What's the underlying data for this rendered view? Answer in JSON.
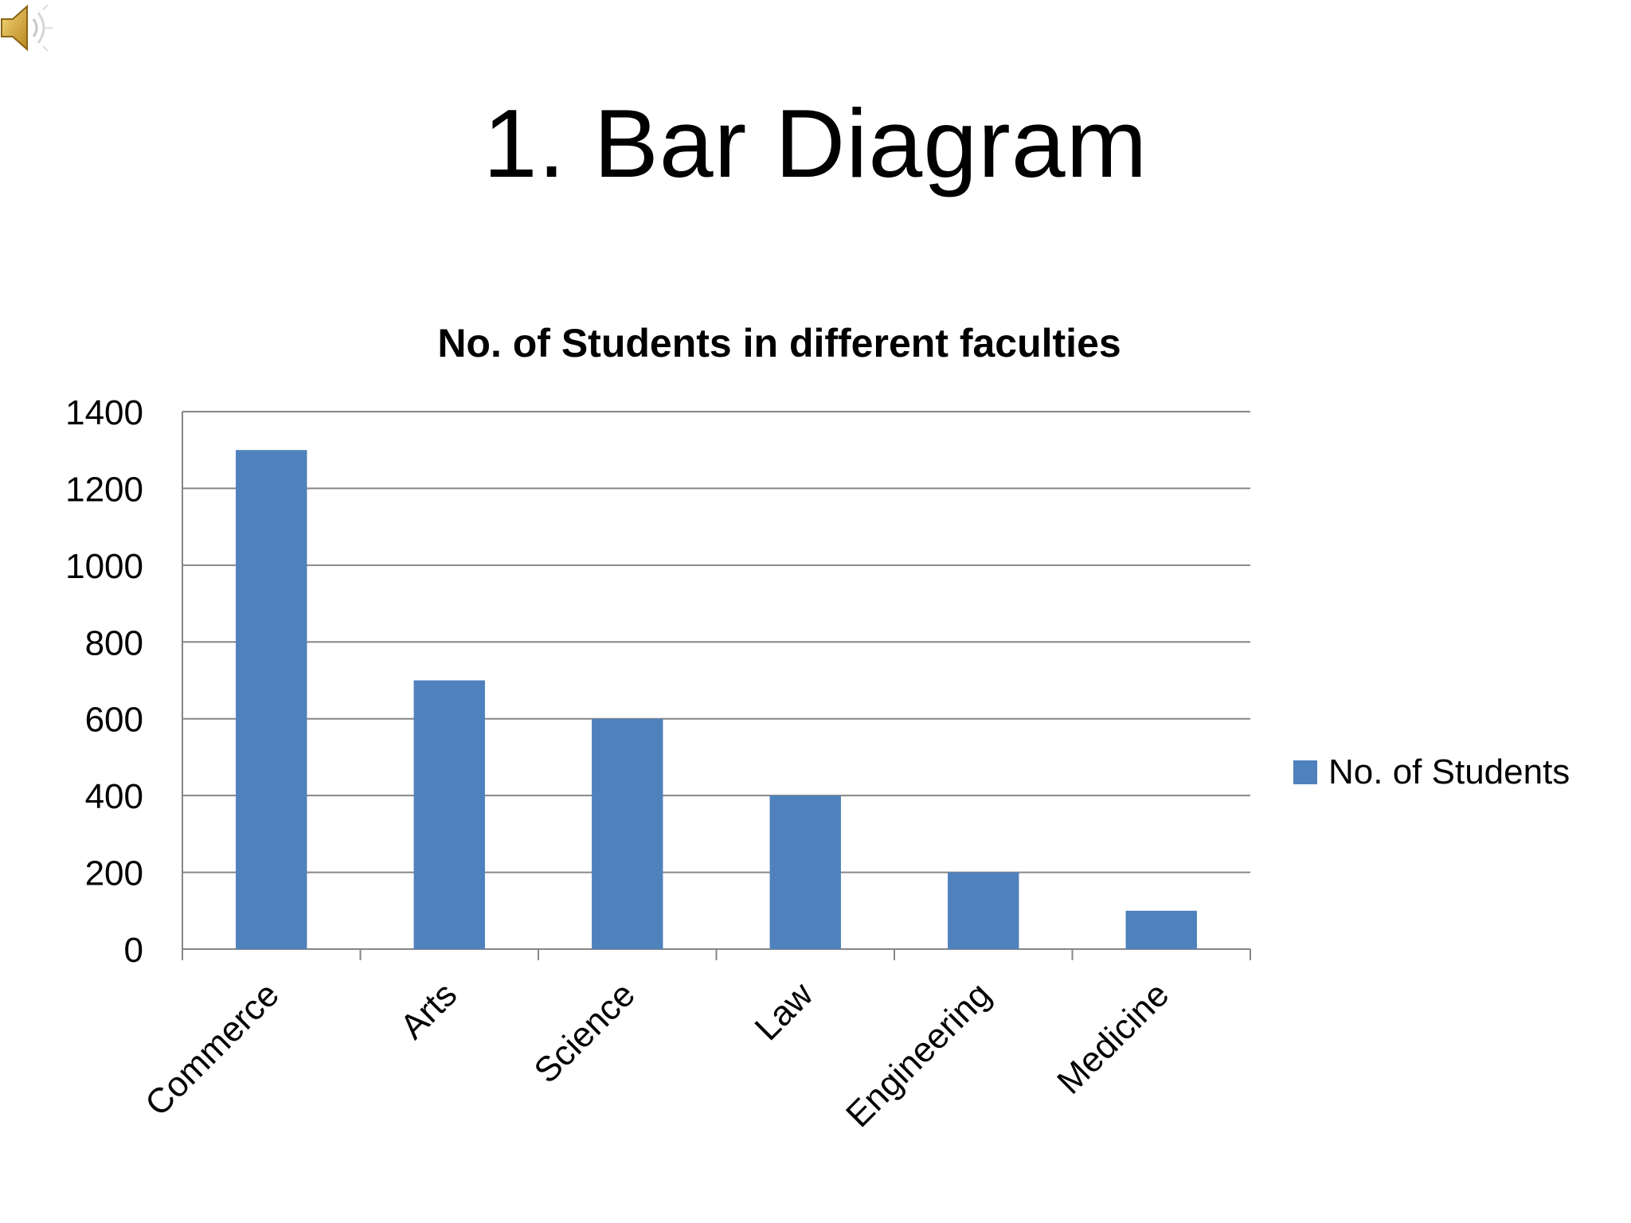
{
  "slide": {
    "title": "1. Bar Diagram"
  },
  "icons": {
    "speaker": "speaker-icon"
  },
  "colors": {
    "bar": "#4F81BD",
    "grid": "#868686",
    "text": "#000000",
    "background": "#FFFFFF"
  },
  "chart_data": {
    "type": "bar",
    "title": "No. of Students in different faculties",
    "xlabel": "",
    "ylabel": "",
    "categories": [
      "Commerce",
      "Arts",
      "Science",
      "Law",
      "Engineering",
      "Medicine"
    ],
    "series": [
      {
        "name": "No. of Students",
        "values": [
          1300,
          700,
          600,
          400,
          200,
          100
        ]
      }
    ],
    "ylim": [
      0,
      1400
    ],
    "yticks": [
      0,
      200,
      400,
      600,
      800,
      1000,
      1200,
      1400
    ],
    "ytick_labels": [
      "0",
      "200",
      "400",
      "600",
      "800",
      "1000",
      "1200",
      "1400"
    ],
    "grid": true,
    "legend": "right"
  }
}
